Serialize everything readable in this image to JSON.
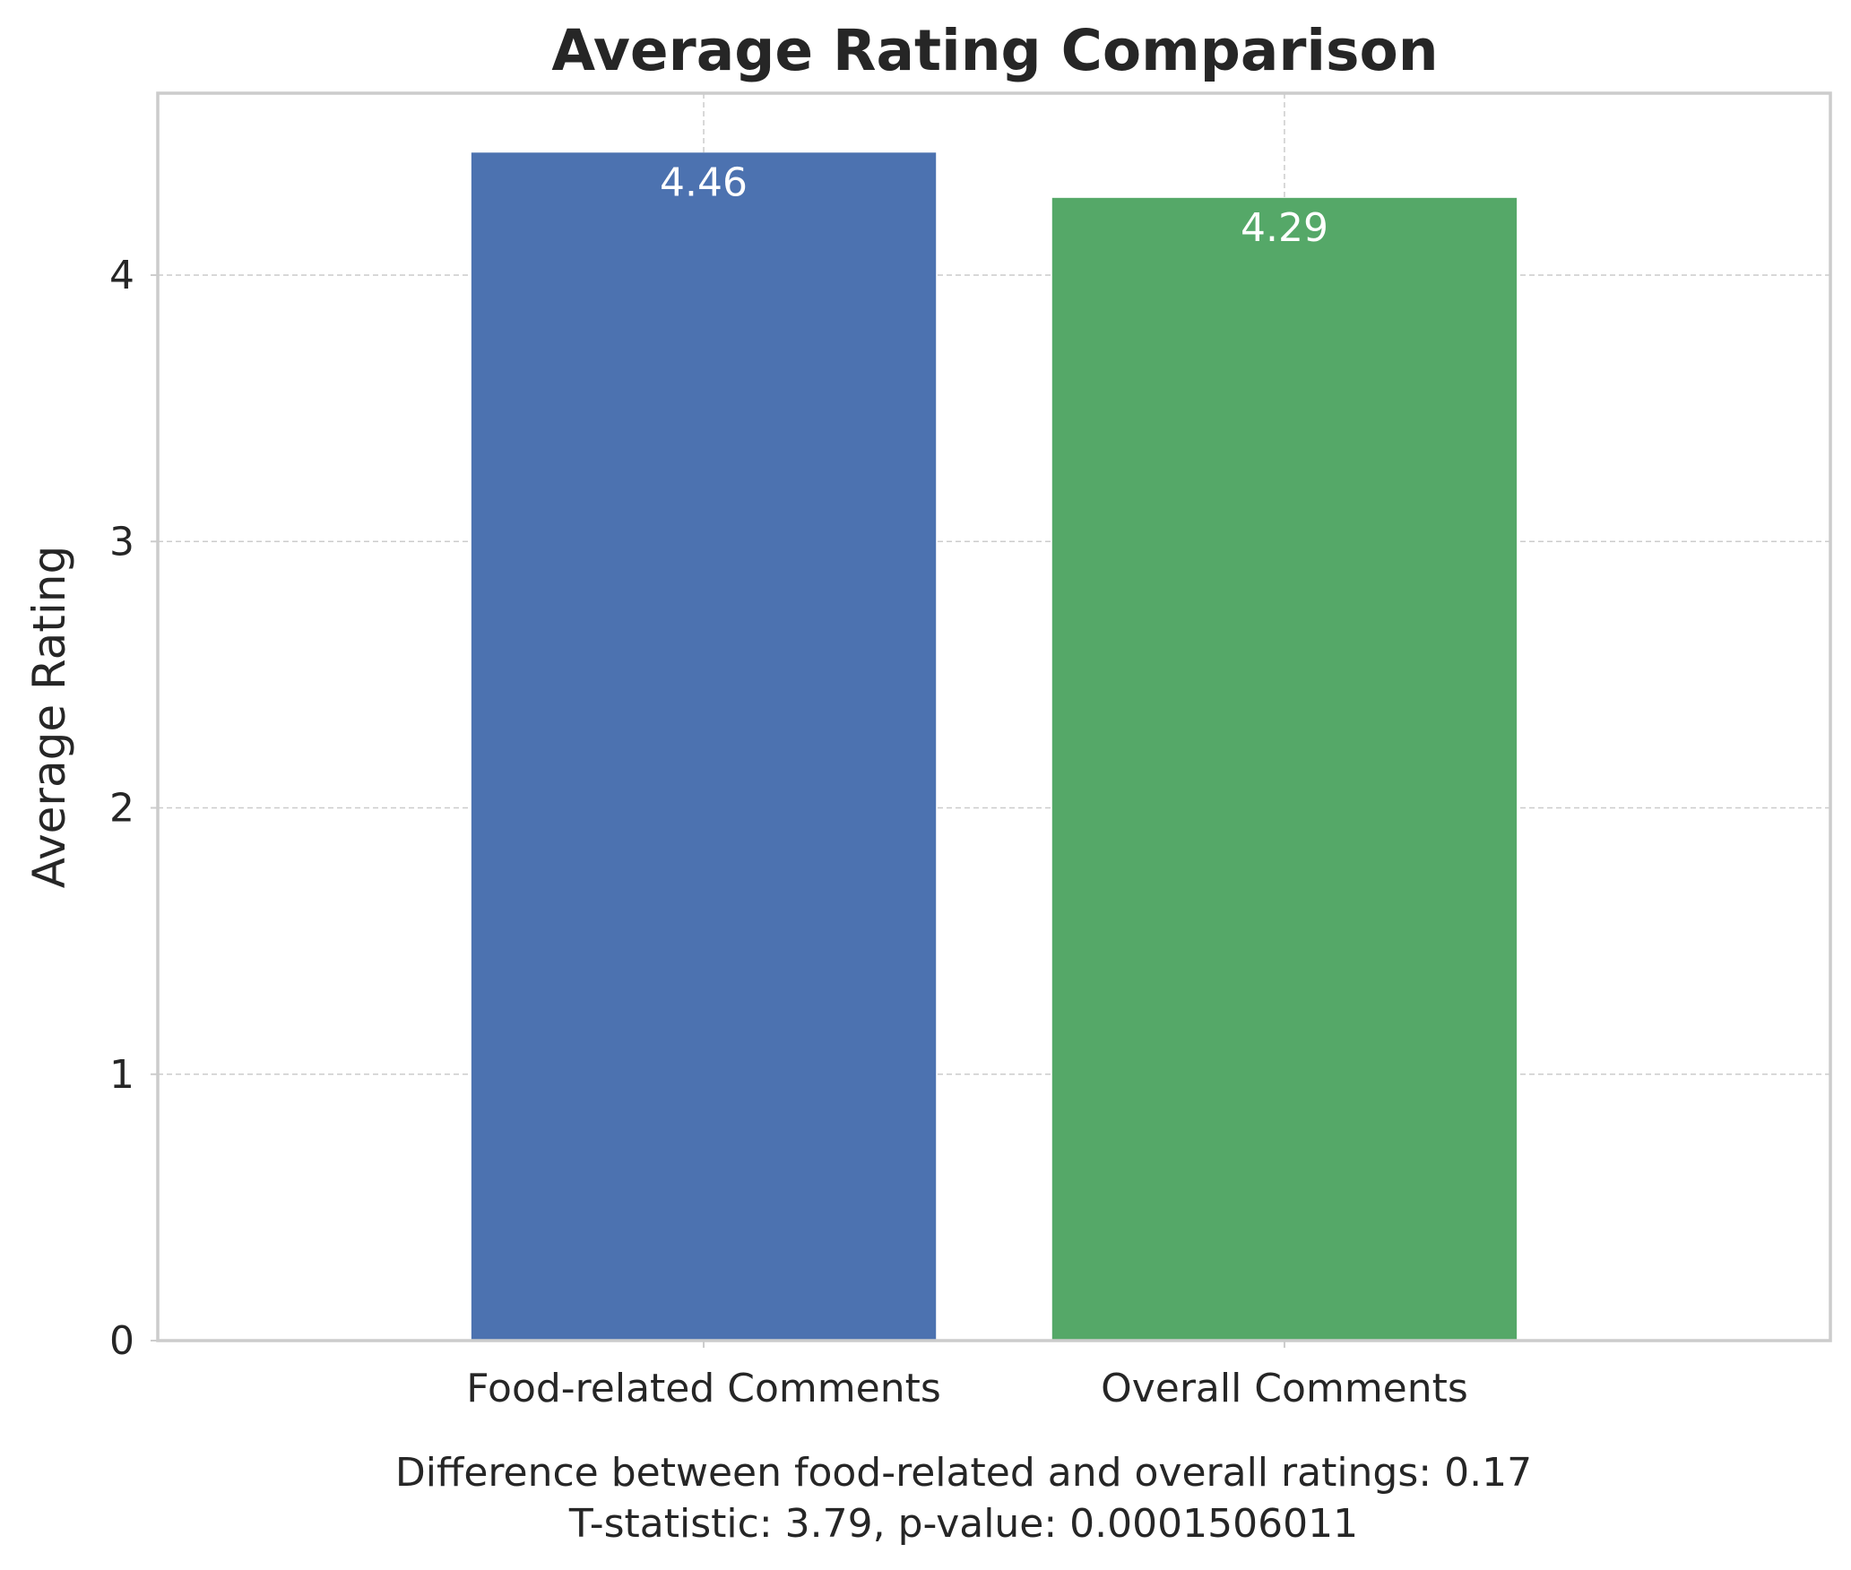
{
  "chart_data": {
    "type": "bar",
    "title": "Average Rating Comparison",
    "xlabel": "",
    "ylabel": "Average Rating",
    "categories": [
      "Food-related Comments",
      "Overall Comments"
    ],
    "values": [
      4.46,
      4.29
    ],
    "value_labels": [
      "4.46",
      "4.29"
    ],
    "colors": [
      "#4c72b0",
      "#55a868"
    ],
    "yticks": [
      0,
      1,
      2,
      3,
      4
    ],
    "ytick_labels": [
      "0",
      "1",
      "2",
      "3",
      "4"
    ],
    "ylim": [
      0,
      4.683
    ],
    "grid": true,
    "footnote_lines": [
      "Difference between food-related and overall ratings: 0.17",
      "T-statistic: 3.79, p-value: 0.0001506011"
    ]
  }
}
